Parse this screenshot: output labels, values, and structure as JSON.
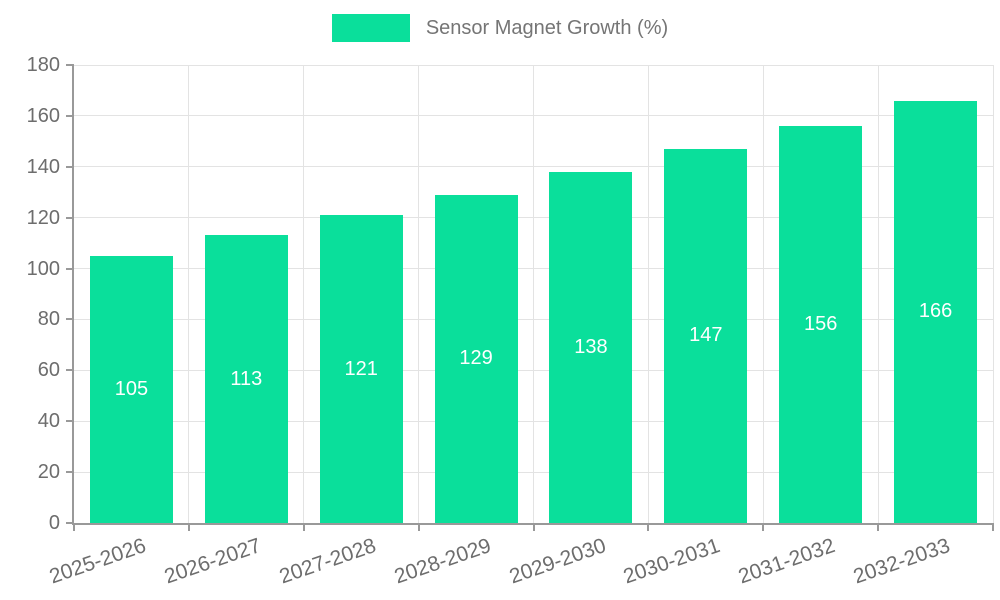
{
  "chart_data": {
    "type": "bar",
    "title": "",
    "legend": {
      "label": "Sensor Magnet Growth (%)",
      "position": "top"
    },
    "categories": [
      "2025-2026",
      "2026-2027",
      "2027-2028",
      "2028-2029",
      "2029-2030",
      "2030-2031",
      "2031-2032",
      "2032-2033"
    ],
    "values": [
      105,
      113,
      121,
      129,
      138,
      147,
      156,
      166
    ],
    "xlabel": "",
    "ylabel": "",
    "ylim": [
      0,
      180
    ],
    "yticks": [
      0,
      20,
      40,
      60,
      80,
      100,
      120,
      140,
      160,
      180
    ],
    "grid": true,
    "value_labels_shown": true,
    "x_label_rotation_deg": -19,
    "colors": {
      "bar": "#0ADF9B",
      "axis": "#999999",
      "grid": "#e3e3e3",
      "tick_label": "#6d6d6d",
      "legend_text": "#757575",
      "value_label": "#ffffff",
      "background": "#ffffff"
    }
  }
}
